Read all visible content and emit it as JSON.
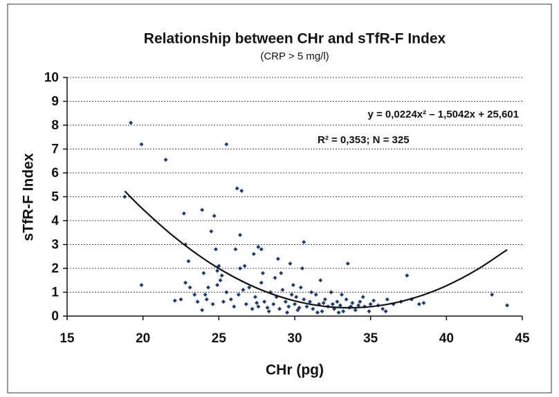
{
  "chart_data": {
    "type": "scatter",
    "title": "Relationship between CHr and sTfR-F Index",
    "subtitle": "(CRP > 5 mg/l)",
    "x_label": "CHr (pg)",
    "y_label": "sTfR-F Index",
    "annotations": [
      "y = 0,0224x² – 1,5042x + 25,601",
      "R² = 0,353; N = 325"
    ],
    "xlim": [
      15,
      45
    ],
    "ylim": [
      0,
      10
    ],
    "xticks": [
      15,
      20,
      25,
      30,
      35,
      40,
      45
    ],
    "yticks": [
      0,
      1,
      2,
      3,
      4,
      5,
      6,
      7,
      8,
      9,
      10
    ],
    "grid": true,
    "color": "#1f3a6e",
    "x": [
      19.2,
      19.9,
      21.5,
      25.5,
      18.8,
      19.9,
      26.2,
      26.5,
      22.7,
      23.9,
      24.7,
      24.5,
      26.4,
      22.8,
      30.6,
      27.6,
      27.8,
      26.1,
      24.8,
      27.3,
      28.9,
      29.7,
      33.5,
      30.5,
      25.0,
      24.9,
      26.4,
      26.7,
      23.0,
      24.0,
      25.2,
      27.9,
      29.1,
      31.7,
      37.4,
      43.0,
      44.0,
      22.1,
      22.5,
      22.8,
      23.1,
      23.4,
      23.6,
      23.9,
      24.2,
      24.3,
      24.6,
      24.9,
      25.3,
      25.5,
      25.8,
      26.0,
      26.3,
      26.8,
      27.0,
      27.2,
      27.4,
      27.6,
      27.8,
      28.0,
      28.2,
      28.4,
      28.6,
      28.8,
      29.0,
      29.2,
      29.4,
      29.6,
      29.8,
      30.0,
      30.2,
      30.4,
      30.6,
      30.8,
      31.0,
      31.2,
      31.4,
      31.6,
      31.8,
      32.0,
      32.2,
      32.4,
      32.6,
      32.8,
      33.0,
      33.2,
      33.4,
      33.6,
      33.8,
      34.0,
      34.3,
      34.6,
      34.9,
      35.2,
      35.5,
      35.8,
      36.1,
      36.5,
      37.0,
      37.7,
      38.2,
      38.5,
      36.0,
      28.3,
      29.5,
      31.5,
      32.9,
      27.5,
      30.1,
      31.1,
      29.9,
      28.7,
      26.6,
      25.1,
      24.1,
      33.1,
      34.5,
      35.0,
      30.3,
      31.9,
      32.5,
      33.7,
      34.2
    ],
    "values": [
      8.1,
      7.2,
      6.55,
      7.2,
      5.0,
      1.3,
      5.35,
      5.25,
      4.3,
      4.45,
      4.2,
      3.55,
      3.4,
      3.0,
      3.1,
      2.9,
      2.8,
      2.8,
      2.8,
      2.6,
      2.4,
      2.2,
      2.2,
      2.0,
      2.1,
      1.9,
      2.0,
      2.1,
      2.3,
      1.8,
      1.7,
      1.8,
      1.8,
      1.5,
      1.7,
      0.9,
      0.45,
      0.65,
      0.7,
      1.4,
      1.2,
      0.9,
      0.6,
      0.25,
      0.7,
      1.2,
      0.5,
      1.3,
      0.6,
      1.0,
      0.7,
      0.4,
      0.9,
      0.5,
      1.2,
      0.3,
      0.8,
      0.4,
      1.4,
      0.6,
      0.35,
      1.0,
      0.5,
      0.8,
      0.3,
      1.1,
      0.6,
      0.4,
      0.9,
      0.5,
      0.25,
      1.2,
      0.7,
      0.4,
      0.6,
      0.3,
      0.9,
      0.5,
      0.2,
      0.7,
      0.4,
      1.0,
      0.3,
      0.6,
      0.45,
      0.2,
      0.7,
      0.35,
      0.55,
      0.25,
      0.6,
      0.4,
      0.2,
      0.65,
      0.45,
      0.3,
      0.7,
      0.5,
      0.6,
      0.7,
      0.5,
      0.55,
      0.2,
      0.2,
      0.15,
      0.15,
      0.15,
      0.55,
      0.8,
      1.0,
      1.3,
      1.6,
      1.1,
      1.5,
      0.9,
      0.9,
      0.8,
      0.5,
      0.35,
      0.55,
      0.5,
      0.4,
      0.45
    ],
    "trendline": {
      "color": "#111111",
      "x": [
        18.8,
        20,
        22,
        24,
        26,
        28,
        30,
        32,
        34,
        36,
        38,
        40,
        42,
        44
      ],
      "values": [
        5.239,
        4.477,
        3.351,
        2.402,
        1.634,
        1.045,
        0.635,
        0.405,
        0.352,
        0.48,
        0.787,
        1.273,
        1.939,
        2.782
      ]
    }
  }
}
